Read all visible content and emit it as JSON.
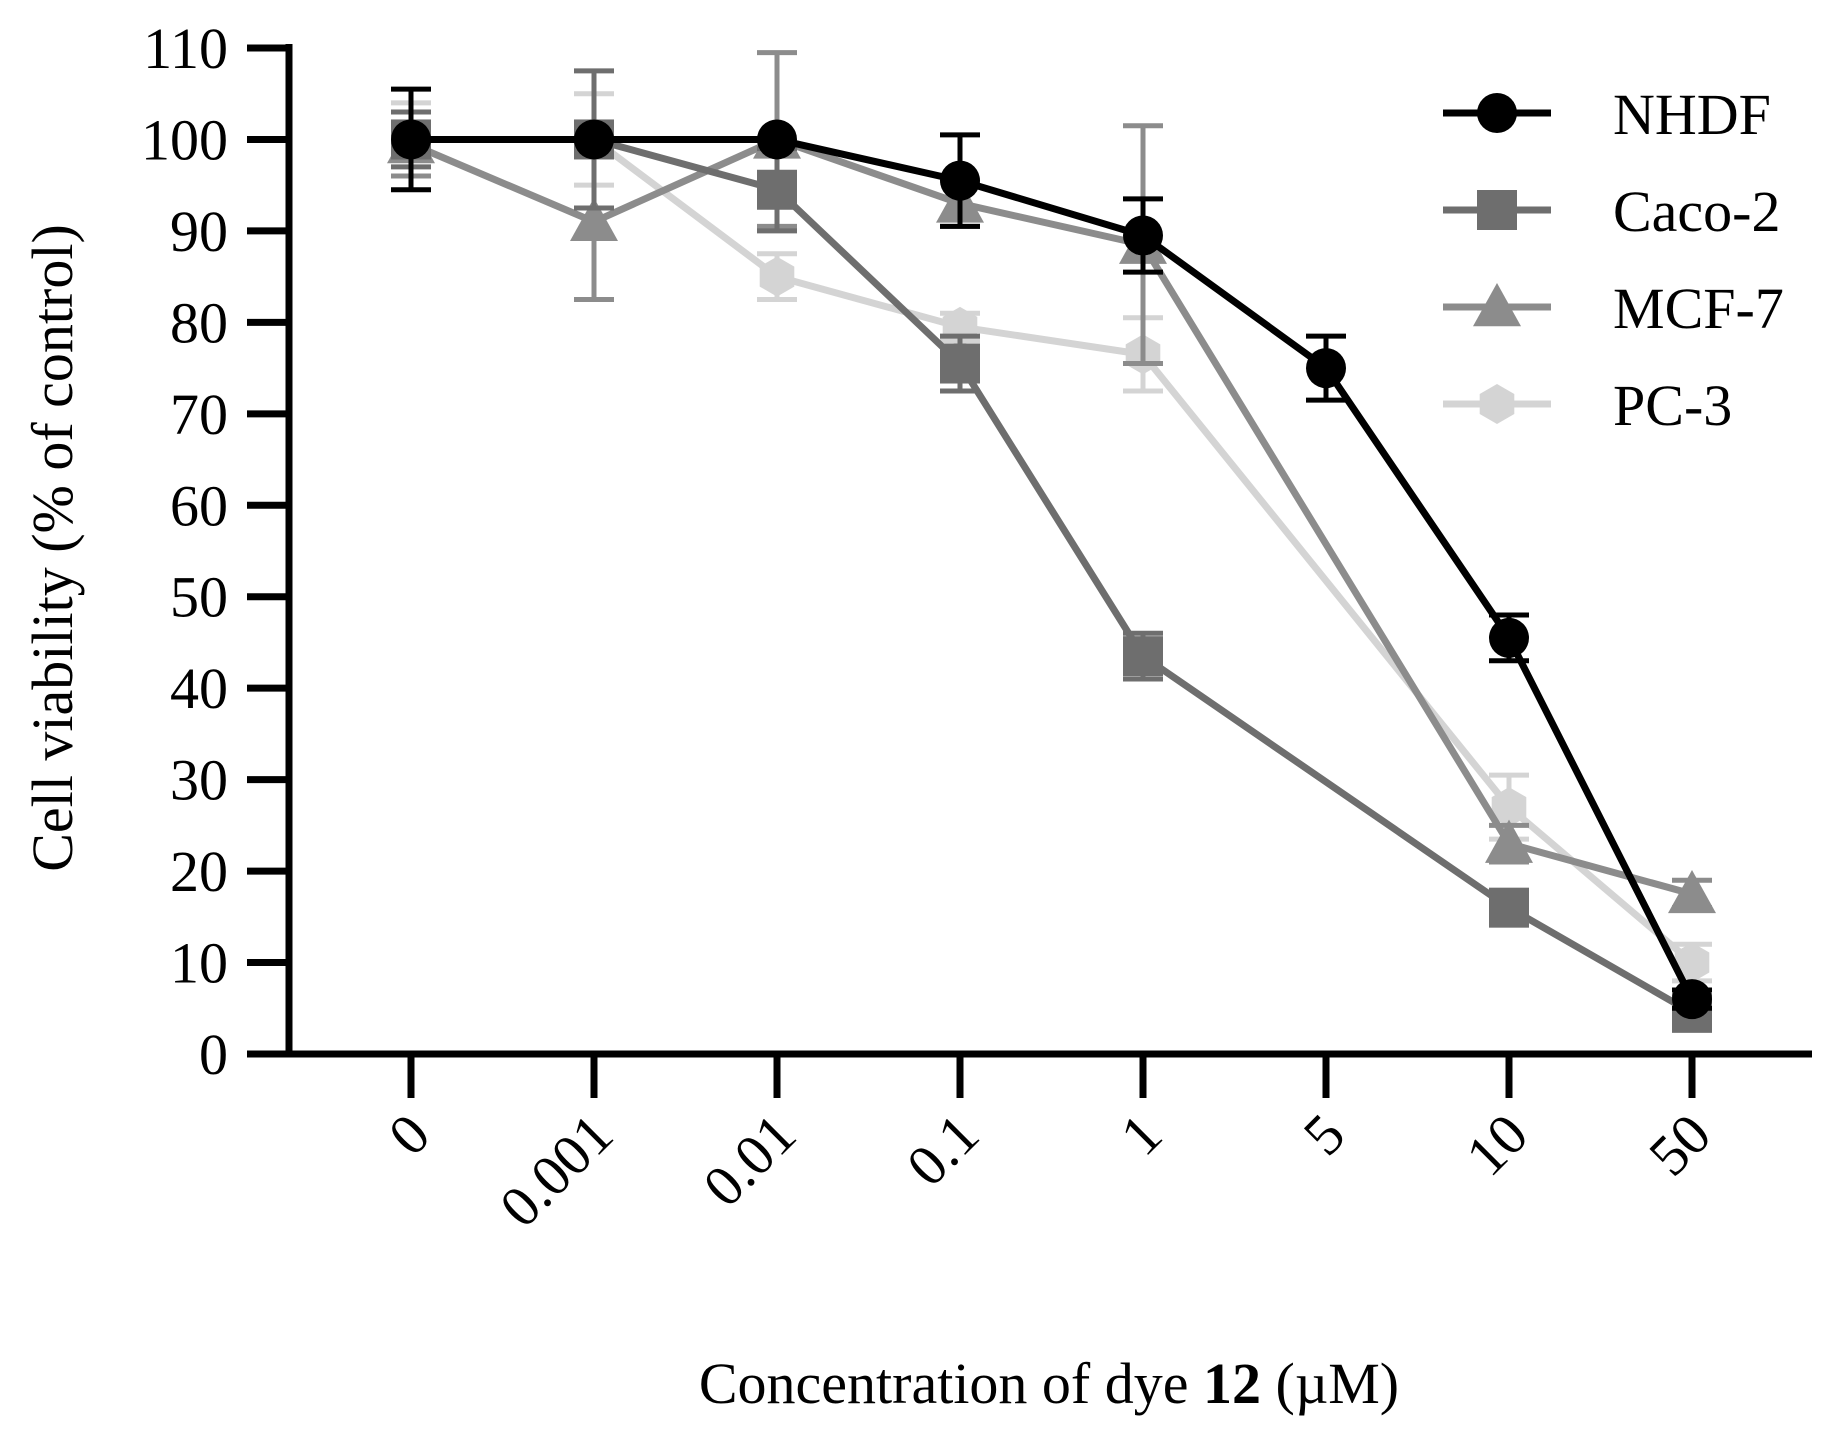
{
  "chart_data": {
    "type": "line",
    "categories": [
      "0",
      "0.001",
      "0.01",
      "0.1",
      "1",
      "5",
      "10",
      "50"
    ],
    "xlabel_parts": [
      "Concentration of dye ",
      "12",
      " (µM)"
    ],
    "ylabel": "Cell viability (% of control)",
    "ylim": [
      0,
      110
    ],
    "yticks": [
      0,
      10,
      20,
      30,
      40,
      50,
      60,
      70,
      80,
      90,
      100,
      110
    ],
    "legend_position": "top-right",
    "series": [
      {
        "name": "PC-3",
        "color": "#d4d4d4",
        "marker": "hexagon",
        "values": [
          100,
          100,
          85,
          79.5,
          76.5,
          null,
          27,
          10
        ],
        "errors": [
          4,
          5,
          2.5,
          1.5,
          4,
          null,
          3.5,
          2
        ]
      },
      {
        "name": "MCF-7",
        "color": "#8c8c8c",
        "marker": "triangle",
        "values": [
          99.5,
          91,
          100,
          93,
          88.5,
          null,
          23,
          17.5
        ],
        "errors": [
          3.5,
          8.5,
          9.5,
          2.5,
          13,
          null,
          2,
          1.5
        ]
      },
      {
        "name": "Caco-2",
        "color": "#6e6e6e",
        "marker": "square",
        "values": [
          100,
          100,
          94.5,
          75.5,
          43.5,
          null,
          16,
          4.5
        ],
        "errors": [
          3,
          7.5,
          4.5,
          3,
          2.5,
          null,
          1.5,
          1
        ]
      },
      {
        "name": "NHDF",
        "color": "#000000",
        "marker": "circle",
        "values": [
          100,
          100,
          100,
          95.5,
          89.5,
          75,
          45.5,
          6
        ],
        "errors": [
          5.5,
          0.5,
          0.5,
          5,
          4,
          3.5,
          2.5,
          1
        ]
      }
    ],
    "legend_order": [
      "NHDF",
      "Caco-2",
      "MCF-7",
      "PC-3"
    ]
  }
}
